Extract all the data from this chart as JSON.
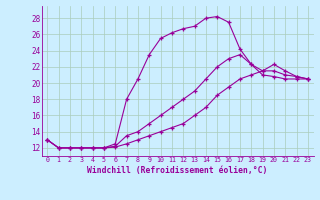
{
  "xlabel": "Windchill (Refroidissement éolien,°C)",
  "bg_color": "#cceeff",
  "grid_color": "#aaccbb",
  "line_color": "#990099",
  "xlim": [
    -0.5,
    23.5
  ],
  "ylim": [
    11.0,
    29.5
  ],
  "xticks": [
    0,
    1,
    2,
    3,
    4,
    5,
    6,
    7,
    8,
    9,
    10,
    11,
    12,
    13,
    14,
    15,
    16,
    17,
    18,
    19,
    20,
    21,
    22,
    23
  ],
  "yticks": [
    12,
    14,
    16,
    18,
    20,
    22,
    24,
    26,
    28
  ],
  "curve1_x": [
    0,
    1,
    2,
    3,
    4,
    5,
    6,
    7,
    8,
    9,
    10,
    11,
    12,
    13,
    14,
    15,
    16,
    17,
    18,
    19,
    20,
    21,
    22,
    23
  ],
  "curve1_y": [
    13.0,
    12.0,
    12.0,
    12.0,
    12.0,
    12.0,
    12.5,
    18.0,
    20.5,
    23.5,
    25.5,
    26.2,
    26.7,
    27.0,
    28.0,
    28.2,
    27.5,
    24.2,
    22.3,
    21.0,
    20.8,
    20.5,
    20.5,
    20.5
  ],
  "curve2_x": [
    0,
    1,
    2,
    3,
    4,
    5,
    6,
    7,
    8,
    9,
    10,
    11,
    12,
    13,
    14,
    15,
    16,
    17,
    18,
    19,
    20,
    21,
    22,
    23
  ],
  "curve2_y": [
    13.0,
    12.0,
    12.0,
    12.0,
    12.0,
    12.0,
    12.2,
    13.5,
    14.0,
    15.0,
    16.0,
    17.0,
    18.0,
    19.0,
    20.5,
    22.0,
    23.0,
    23.5,
    22.3,
    21.5,
    22.3,
    21.5,
    20.8,
    20.5
  ],
  "curve3_x": [
    0,
    1,
    2,
    3,
    4,
    5,
    6,
    7,
    8,
    9,
    10,
    11,
    12,
    13,
    14,
    15,
    16,
    17,
    18,
    19,
    20,
    21,
    22,
    23
  ],
  "curve3_y": [
    13.0,
    12.0,
    12.0,
    12.0,
    12.0,
    12.0,
    12.1,
    12.5,
    13.0,
    13.5,
    14.0,
    14.5,
    15.0,
    16.0,
    17.0,
    18.5,
    19.5,
    20.5,
    21.0,
    21.5,
    21.5,
    21.0,
    20.8,
    20.5
  ]
}
